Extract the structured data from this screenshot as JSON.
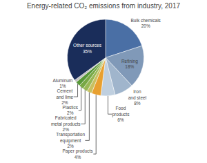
{
  "chart_data": {
    "type": "pie",
    "title": "Energy-related CO₂ emissions from industry, 2017",
    "categories": [
      "Bulk chemicals",
      "Refining",
      "Iron\nand steel",
      "Food\nproducts",
      "Paper products",
      "Transportation\nequipment",
      "Fabricated\nmetal products",
      "Plastics",
      "Cement\nand lime",
      "Aluminum",
      "Other sources"
    ],
    "values": [
      20,
      18,
      8,
      6,
      4,
      2,
      2,
      2,
      2,
      1,
      35
    ],
    "value_labels": [
      "20%",
      "18%",
      "8%",
      "6%",
      "4%",
      "2%",
      "2%",
      "2%",
      "2%",
      "1%",
      "35%"
    ],
    "data_labels": true,
    "colors": [
      "#4a6fa5",
      "#8099b8",
      "#a0b5cc",
      "#bfcfdf",
      "#e8a030",
      "#c8c060",
      "#98b855",
      "#78a845",
      "#589838",
      "#c0c0c0",
      "#1a2d5a"
    ]
  }
}
